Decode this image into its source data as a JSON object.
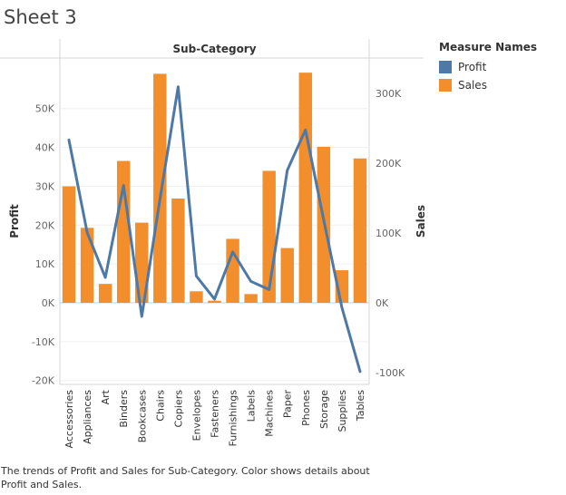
{
  "sheet": {
    "title": "Sheet 3"
  },
  "caption": "The trends of Profit and Sales for Sub-Category.  Color shows details about Profit and Sales.",
  "legend": {
    "title": "Measure Names",
    "items": [
      {
        "label": "Profit",
        "color": "#4e79a7"
      },
      {
        "label": "Sales",
        "color": "#f28e2b"
      }
    ]
  },
  "chart_data": {
    "type": "bar",
    "title": "",
    "column_header": "Sub-Category",
    "categories": [
      "Accessories",
      "Appliances",
      "Art",
      "Binders",
      "Bookcases",
      "Chairs",
      "Copiers",
      "Envelopes",
      "Fasteners",
      "Furnishings",
      "Labels",
      "Machines",
      "Paper",
      "Phones",
      "Storage",
      "Supplies",
      "Tables"
    ],
    "series": [
      {
        "name": "Sales",
        "type": "bar",
        "axis": "right",
        "color": "#f28e2b",
        "values": [
          167000,
          107500,
          27100,
          203400,
          114900,
          328400,
          149500,
          16500,
          3000,
          91700,
          12500,
          189200,
          78500,
          330000,
          223800,
          46700,
          207000
        ]
      },
      {
        "name": "Profit",
        "type": "line",
        "axis": "left",
        "color": "#4e79a7",
        "values": [
          41900,
          18100,
          6500,
          30200,
          -3500,
          26600,
          55600,
          6900,
          950,
          13100,
          5500,
          3400,
          34100,
          44500,
          21300,
          -1200,
          -17700
        ]
      }
    ],
    "left_axis": {
      "label": "Profit",
      "ylim": [
        -21000,
        63000
      ],
      "ticks": [
        -20000,
        -10000,
        0,
        10000,
        20000,
        30000,
        40000,
        50000
      ],
      "tick_labels": [
        "-20K",
        "-10K",
        "0K",
        "10K",
        "20K",
        "30K",
        "40K",
        "50K"
      ]
    },
    "right_axis": {
      "label": "Sales",
      "ylim": [
        -117000,
        351000
      ],
      "ticks": [
        -100000,
        0,
        100000,
        200000,
        300000
      ],
      "tick_labels": [
        "-100K",
        "0K",
        "100K",
        "200K",
        "300K"
      ]
    },
    "grid": true
  }
}
